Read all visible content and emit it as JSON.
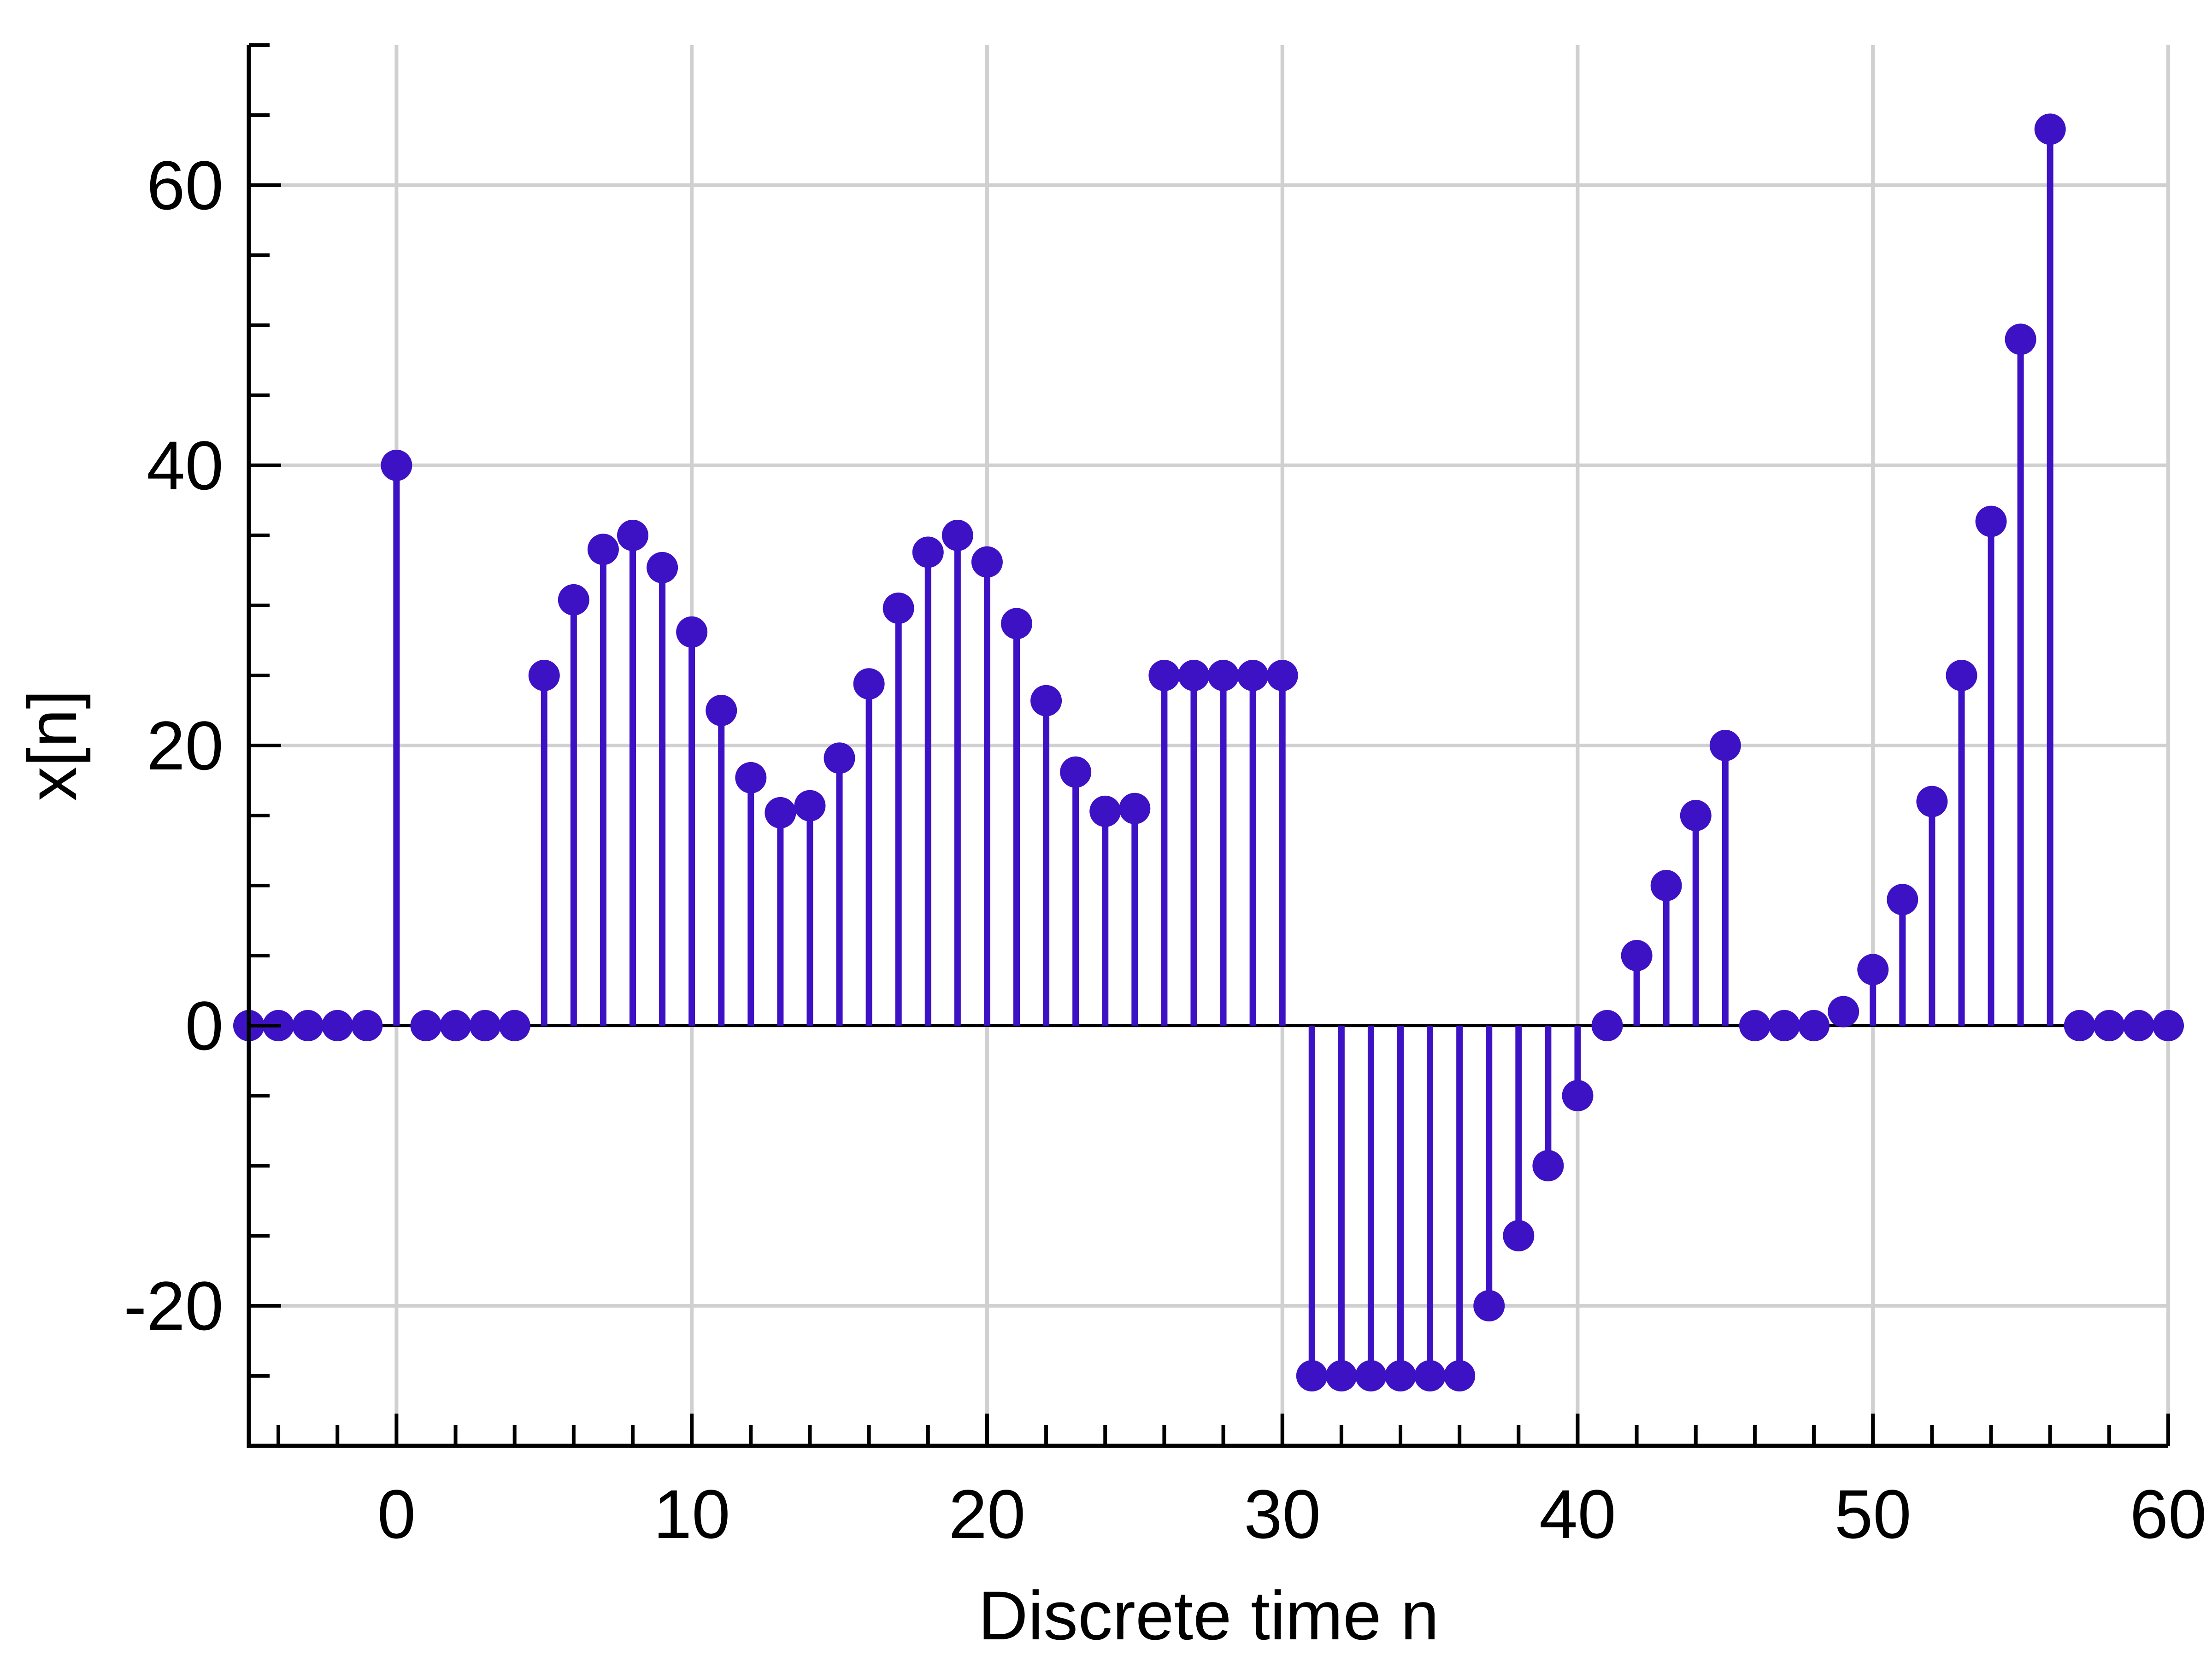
{
  "chart_data": {
    "type": "stem",
    "xlabel": "Discrete time n",
    "ylabel": "x[n]",
    "title": "",
    "xlim": [
      -5,
      60
    ],
    "ylim": [
      -30,
      70
    ],
    "xticks": [
      0,
      10,
      20,
      30,
      40,
      50,
      60
    ],
    "xtick_labels": [
      "0",
      "10",
      "20",
      "30",
      "40",
      "50",
      "60"
    ],
    "yticks": [
      -20,
      0,
      20,
      40,
      60
    ],
    "ytick_labels": [
      "-20",
      "0",
      "20",
      "40",
      "60"
    ],
    "grid": true,
    "color": "#3d11c4",
    "x": [
      -5,
      -4,
      -3,
      -2,
      -1,
      0,
      1,
      2,
      3,
      4,
      5,
      6,
      7,
      8,
      9,
      10,
      11,
      12,
      13,
      14,
      15,
      16,
      17,
      18,
      19,
      20,
      21,
      22,
      23,
      24,
      25,
      26,
      27,
      28,
      29,
      30,
      31,
      32,
      33,
      34,
      35,
      36,
      37,
      38,
      39,
      40,
      41,
      42,
      43,
      44,
      45,
      46,
      47,
      48,
      49,
      50,
      51,
      52,
      53,
      54,
      55,
      56,
      57,
      58,
      59,
      60
    ],
    "y": [
      0,
      0,
      0,
      0,
      0,
      40,
      0,
      0,
      0,
      0,
      25,
      30.4,
      34,
      35,
      32.7,
      28.1,
      22.5,
      17.7,
      15.2,
      15.7,
      19.1,
      24.4,
      29.8,
      33.8,
      35,
      33.1,
      28.7,
      23.2,
      18.1,
      15.3,
      15.5,
      25,
      25,
      25,
      25,
      25,
      -25,
      -25,
      -25,
      -25,
      -25,
      -25,
      -20,
      -15,
      -10,
      -5,
      0,
      5,
      10,
      15,
      20,
      0,
      0,
      0,
      1,
      4,
      9,
      16,
      25,
      36,
      49,
      64,
      0,
      0,
      0,
      0
    ]
  }
}
